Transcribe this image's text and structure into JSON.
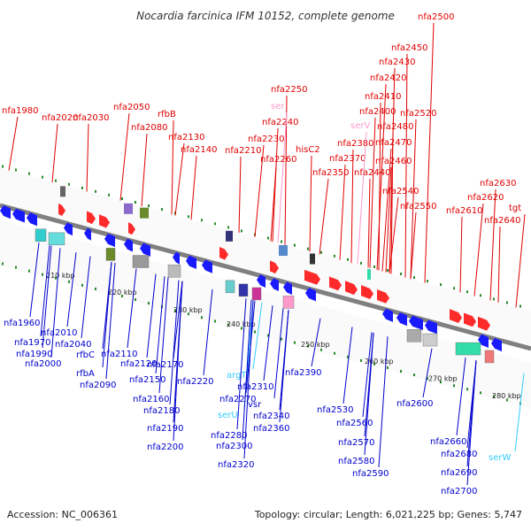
{
  "title": "Nocardia farcinica IFM 10152, complete genome",
  "accession_text": "Accession: NC_006361",
  "summary_text": "Topology: circular; Length: 6,021,225 bp; Genes: 5,747",
  "colors": {
    "top_label": "#e00000",
    "bottom_label": "#0000cc",
    "rna_label": "#33ccff",
    "rna_label_top": "#ff99cc",
    "forward_gene": "#ff2a2a",
    "reverse_gene": "#1a1aff",
    "backbone": "#808080",
    "tick": "#2a8a2a"
  },
  "scale_labels": [
    "210 kbp",
    "220 kbp",
    "230 kbp",
    "240 kbp",
    "250 kbp",
    "260 kbp",
    "270 kbp",
    "280 kbp"
  ],
  "top_labels": [
    "nfa1980",
    "nfa2020",
    "nfa2030",
    "nfa2050",
    "nfa2080",
    "rfbB",
    "nfa2130",
    "nfa2140",
    "nfa2210",
    "nfa2230",
    "nfa2240",
    "nfa2250",
    "ser",
    "nfa2260",
    "hisC2",
    "nfa2350",
    "nfa2370",
    "nfa2380",
    "serV",
    "nfa2400",
    "nfa2410",
    "nfa2420",
    "nfa2430",
    "nfa2450",
    "nfa2500",
    "nfa2520",
    "nfa2480",
    "nfa2470",
    "nfa2460",
    "nfa2440",
    "nfa2540",
    "nfa2550",
    "nfa2610",
    "nfa2620",
    "nfa2630",
    "nfa2640",
    "tgt"
  ],
  "bottom_labels": [
    "nfa1960",
    "nfa1970",
    "nfa1990",
    "nfa2000",
    "nfa2010",
    "nfa2040",
    "rfbC",
    "rfbA",
    "nfa2090",
    "nfa2110",
    "nfa2120",
    "nfa2150",
    "nfa2160",
    "nfa2170",
    "nfa2180",
    "nfa2190",
    "nfa2200",
    "nfa2220",
    "argT",
    "serU",
    "nfa2270",
    "nfa2280",
    "nfa2300",
    "nfa2310",
    "vsr",
    "nfa2320",
    "nfa2340",
    "nfa2360",
    "nfa2390",
    "nfa2530",
    "nfa2560",
    "nfa2570",
    "nfa2580",
    "nfa2590",
    "nfa2600",
    "nfa2660",
    "nfa2680",
    "nfa2690",
    "nfa2700",
    "serW"
  ]
}
